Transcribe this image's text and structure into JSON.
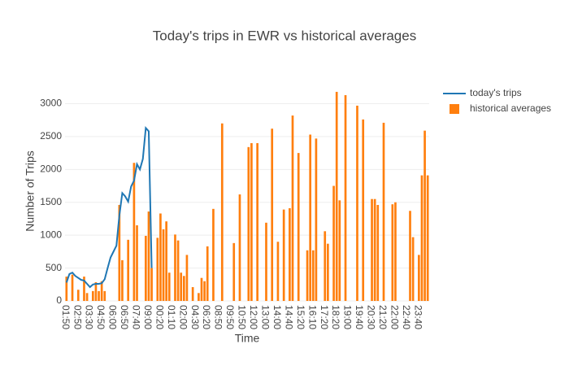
{
  "chart_data": {
    "type": "bar",
    "title": "Today's trips in EWR vs historical averages",
    "x_label": "Time",
    "y_label": "Number of Trips",
    "categories": [
      "01:50",
      null,
      null,
      null,
      "02:50",
      null,
      null,
      null,
      "03:30",
      null,
      null,
      null,
      "04:50",
      null,
      null,
      null,
      "06:00",
      null,
      null,
      null,
      "06:50",
      null,
      null,
      null,
      "07:40",
      null,
      null,
      null,
      "09:00",
      null,
      null,
      null,
      "00:20",
      null,
      null,
      null,
      "01:10",
      null,
      null,
      null,
      "02:00",
      null,
      null,
      null,
      "04:30",
      null,
      null,
      null,
      "06:20",
      null,
      null,
      null,
      "08:50",
      null,
      null,
      null,
      "09:50",
      null,
      null,
      null,
      "10:50",
      null,
      null,
      null,
      "12:00",
      null,
      null,
      null,
      "13:00",
      null,
      null,
      null,
      "14:00",
      null,
      null,
      null,
      "14:40",
      null,
      null,
      null,
      "15:20",
      null,
      null,
      null,
      "16:10",
      null,
      null,
      null,
      "17:20",
      null,
      null,
      null,
      "18:20",
      null,
      null,
      null,
      "19:00",
      null,
      null,
      null,
      "19:40",
      null,
      null,
      null,
      "20:30",
      null,
      null,
      null,
      "21:20",
      null,
      null,
      null,
      "22:00",
      null,
      null,
      null,
      "22:40",
      null,
      null,
      null,
      "23:40",
      null,
      null,
      null
    ],
    "series": [
      {
        "name": "today's trips",
        "type": "line",
        "color": "#1f77b4",
        "values": [
          280,
          410,
          430,
          380,
          350,
          320,
          310,
          260,
          210,
          250,
          260,
          260,
          270,
          330,
          500,
          660,
          750,
          840,
          1300,
          1640,
          1590,
          1510,
          1740,
          1830,
          2080,
          2000,
          2160,
          2630,
          2580,
          500,
          null,
          null,
          null,
          null,
          null,
          null,
          null,
          null,
          null,
          null,
          null,
          null,
          null,
          null,
          null,
          null,
          null,
          null,
          null,
          null,
          null,
          null,
          null,
          null,
          null,
          null,
          null,
          null,
          null,
          null,
          null,
          null,
          null,
          null,
          null,
          null,
          null,
          null,
          null,
          null,
          null,
          null,
          null,
          null,
          null,
          null,
          null,
          null,
          null,
          null,
          null,
          null,
          null,
          null,
          null,
          null,
          null,
          null,
          null,
          null,
          null,
          null,
          null,
          null,
          null,
          null,
          null,
          null,
          null,
          null,
          null,
          null,
          null,
          null,
          null,
          null,
          null,
          null,
          null,
          null,
          null,
          null,
          null,
          null,
          null,
          null,
          null,
          null,
          null,
          null,
          null,
          null,
          null,
          null
        ]
      },
      {
        "name": "historical averages",
        "type": "bar",
        "color": "#ff7f0e",
        "values": [
          370,
          0,
          400,
          0,
          170,
          0,
          370,
          120,
          0,
          150,
          285,
          150,
          300,
          150,
          0,
          0,
          0,
          0,
          1460,
          620,
          0,
          930,
          0,
          2100,
          1150,
          0,
          0,
          990,
          1360,
          500,
          0,
          960,
          1330,
          1090,
          1210,
          430,
          0,
          1010,
          920,
          430,
          380,
          700,
          0,
          210,
          0,
          120,
          350,
          300,
          830,
          0,
          1400,
          0,
          0,
          2700,
          0,
          0,
          0,
          880,
          0,
          1620,
          0,
          0,
          2340,
          2400,
          0,
          2400,
          0,
          0,
          1190,
          0,
          2620,
          0,
          900,
          0,
          1390,
          0,
          1410,
          2820,
          0,
          2250,
          0,
          0,
          770,
          2530,
          770,
          2470,
          0,
          0,
          1060,
          870,
          0,
          1750,
          3180,
          1530,
          0,
          3130,
          0,
          0,
          0,
          2970,
          0,
          2760,
          0,
          0,
          1550,
          1550,
          1460,
          0,
          2710,
          0,
          0,
          1470,
          1500,
          0,
          0,
          0,
          0,
          1370,
          970,
          0,
          700,
          1910,
          2590,
          1910
        ]
      }
    ],
    "ylim": [
      0,
      3340
    ],
    "yticks": [
      0,
      500,
      1000,
      1500,
      2000,
      2500,
      3000
    ],
    "grid": true,
    "legend": "right"
  }
}
